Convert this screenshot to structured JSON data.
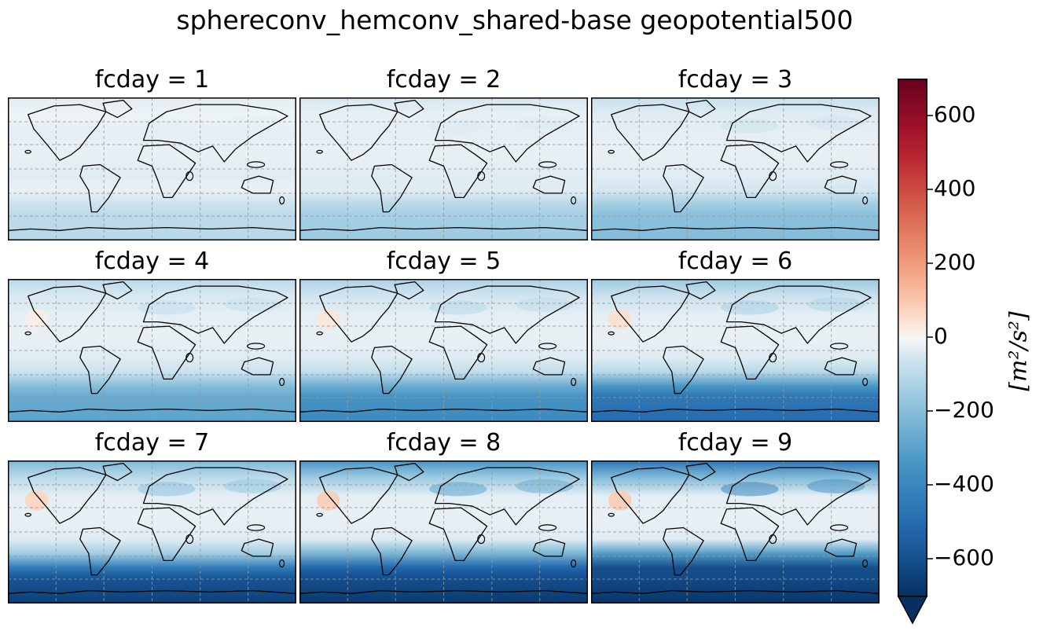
{
  "figure": {
    "title": "sphereconv_hemconv_shared-base geopotential500",
    "colormap": "RdBu_r",
    "vmin": -700,
    "vmax": 700,
    "gridlines": true
  },
  "panels": [
    {
      "label": "fcday = 1",
      "antarctic_level": -0.15,
      "band_level": -0.05,
      "pacific_warm": 0.0
    },
    {
      "label": "fcday = 2",
      "antarctic_level": -0.22,
      "band_level": -0.08,
      "pacific_warm": 0.0
    },
    {
      "label": "fcday = 3",
      "antarctic_level": -0.3,
      "band_level": -0.12,
      "pacific_warm": 0.0
    },
    {
      "label": "fcday = 4",
      "antarctic_level": -0.42,
      "band_level": -0.16,
      "pacific_warm": 0.03
    },
    {
      "label": "fcday = 5",
      "antarctic_level": -0.55,
      "band_level": -0.2,
      "pacific_warm": 0.05
    },
    {
      "label": "fcday = 6",
      "antarctic_level": -0.72,
      "band_level": -0.25,
      "pacific_warm": 0.07
    },
    {
      "label": "fcday = 7",
      "antarctic_level": -0.92,
      "band_level": -0.35,
      "pacific_warm": 0.1
    },
    {
      "label": "fcday = 8",
      "antarctic_level": -0.95,
      "band_level": -0.55,
      "pacific_warm": 0.12
    },
    {
      "label": "fcday = 9",
      "antarctic_level": -0.97,
      "band_level": -0.75,
      "pacific_warm": 0.13
    }
  ],
  "colorbar": {
    "ticks": [
      {
        "value": 600,
        "label": "600"
      },
      {
        "value": 400,
        "label": "400"
      },
      {
        "value": 200,
        "label": "200"
      },
      {
        "value": 0,
        "label": "0"
      },
      {
        "value": -200,
        "label": "−200"
      },
      {
        "value": -400,
        "label": "−400"
      },
      {
        "value": -600,
        "label": "−600"
      }
    ],
    "label": "[m²/s²]",
    "extend": "min"
  }
}
